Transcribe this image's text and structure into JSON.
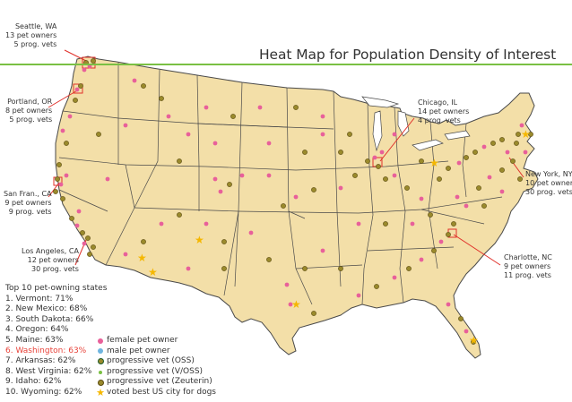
{
  "title": "Heat Map for Population Density of Interest",
  "callouts": {
    "seattle": [
      "Seattle, WA",
      "13 pet owners",
      "5 prog. vets"
    ],
    "portland": [
      "Portland, OR",
      "8 pet owners",
      "5 prog. vets"
    ],
    "sanfran": [
      "San Fran., CA",
      "9 pet owners",
      "9 prog. vets"
    ],
    "losangeles": [
      "Los Angeles, CA",
      "12 pet owners",
      "30 prog. vets"
    ],
    "chicago": [
      "Chicago, IL",
      "14 pet owners",
      "4 prog. vets"
    ],
    "newyork": [
      "New York, NY",
      "10 pet owners",
      "30 prog. vets"
    ],
    "charlotte": [
      "Charlotte, NC",
      "9 pet owners",
      "11 prog. vets"
    ]
  },
  "top10": {
    "heading": "Top 10 pet-owning states",
    "items": [
      "1. Vermont: 71%",
      "2. New Mexico: 68%",
      "3. South Dakota: 66%",
      "4. Oregon: 64%",
      "5. Maine: 63%",
      "6. Washington: 63%",
      "7. Arkansas: 62%",
      "8. West Virginia: 62%",
      "9. Idaho: 62%",
      "10. Wyoming: 62%"
    ],
    "highlight_index": 5
  },
  "legend": [
    {
      "icon": "pink-dot-icon",
      "label": "female pet owner",
      "color": "#e8609a"
    },
    {
      "icon": "blue-dot-icon",
      "label": "male pet owner",
      "color": "#6fb5e0"
    },
    {
      "icon": "dark-ring-icon",
      "label": "progressive vet (OSS)",
      "color": "#1a5a2a"
    },
    {
      "icon": "green-dot-icon",
      "label": "progressive vet (V/OSS)",
      "color": "#7ac043"
    },
    {
      "icon": "olive-dot-icon",
      "label": "progressive vet (Zeuterin)",
      "color": "#9a8a2c"
    },
    {
      "icon": "star-icon",
      "label": "voted best US city for dogs",
      "color": "#f5b700"
    }
  ],
  "colors": {
    "land": "#f3dfa8",
    "border": "#4a4a4a",
    "rule": "#7ac043",
    "callout_line": "#e0302a",
    "highlight": "#e8433a"
  }
}
